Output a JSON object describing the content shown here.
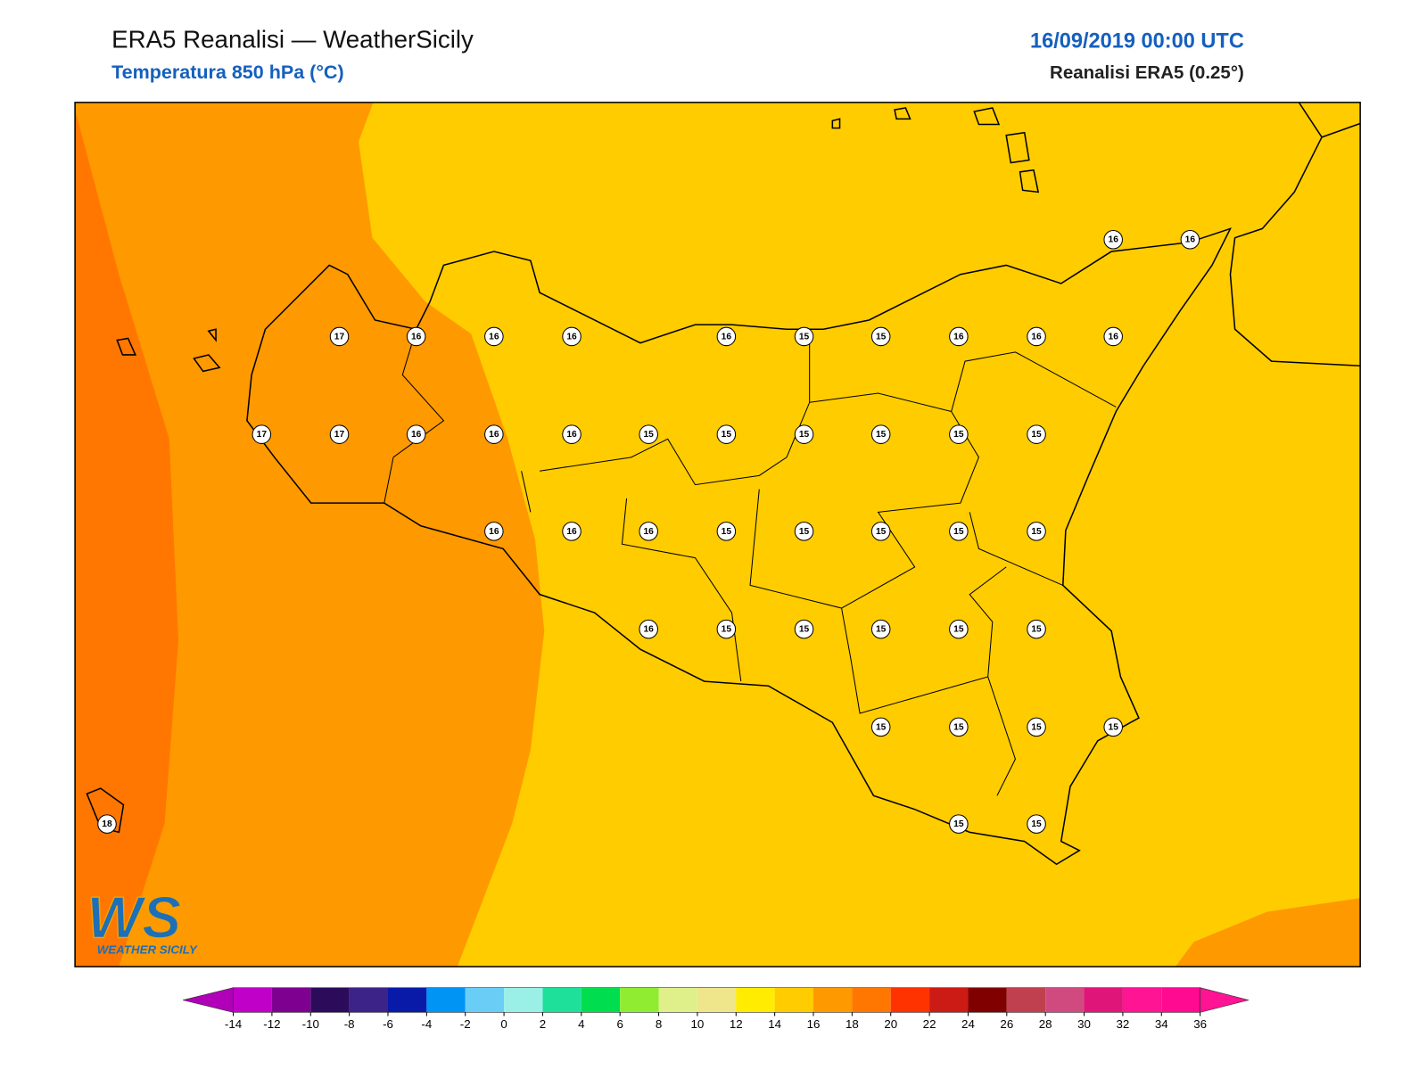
{
  "header": {
    "title": "ERA5 Reanalisi — WeatherSicily",
    "subtitle": "Temperatura 850 hPa (°C)",
    "datetime": "16/09/2019 00:00 UTC",
    "source": "Reanalisi ERA5 (0.25°)"
  },
  "stations": [
    16,
    16,
    17,
    16,
    16,
    16,
    16,
    15,
    15,
    16,
    16,
    16,
    17,
    17,
    16,
    16,
    16,
    15,
    15,
    15,
    15,
    15,
    15,
    16,
    16,
    16,
    15,
    15,
    15,
    15,
    15,
    16,
    15,
    15,
    15,
    15,
    15,
    15,
    15,
    15,
    15,
    18,
    15,
    15
  ],
  "colorbar": {
    "ticks": [
      -14,
      -12,
      -10,
      -8,
      -6,
      -4,
      -2,
      0,
      2,
      4,
      6,
      8,
      10,
      12,
      14,
      16,
      18,
      20,
      22,
      24,
      26,
      28,
      30,
      32,
      34,
      36
    ],
    "colors": [
      "#b000b8",
      "#c000c8",
      "#7d0091",
      "#2c0c5a",
      "#3b2387",
      "#0a1aa8",
      "#0094f5",
      "#6acdf5",
      "#9af0e6",
      "#1ee09a",
      "#00de50",
      "#8fec30",
      "#dff08a",
      "#efe58a",
      "#ffec00",
      "#ffcc00",
      "#ff9900",
      "#ff7700",
      "#ff3300",
      "#cc1a15",
      "#800000",
      "#c04050",
      "#d04a80",
      "#e0157a",
      "#ff1493",
      "#ff0a90",
      "#ff1493"
    ]
  },
  "logo": {
    "mark": "WS",
    "name": "WEATHER SICILY"
  }
}
